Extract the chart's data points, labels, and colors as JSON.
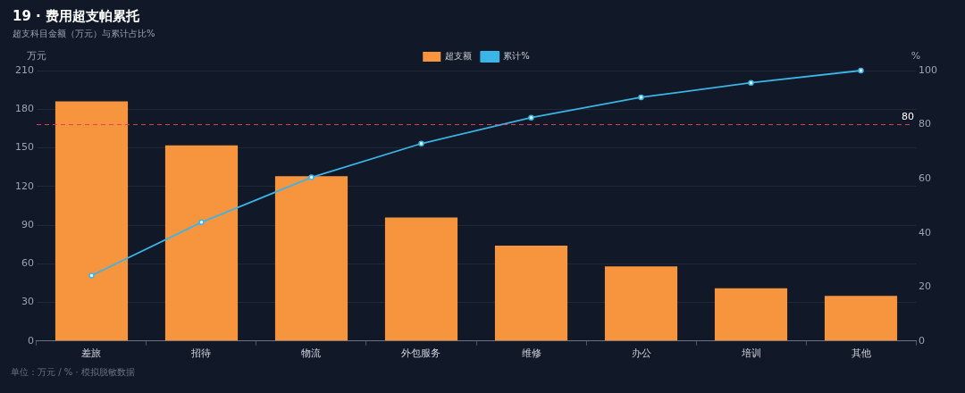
{
  "chart_data": {
    "type": "bar",
    "title": "19 · 费用超支帕累托",
    "subtitle": "超支科目金额（万元）与累计占比%",
    "ylabel": "万元",
    "y2label": "%",
    "categories": [
      "差旅",
      "招待",
      "物流",
      "外包服务",
      "维修",
      "办公",
      "培训",
      "其他"
    ],
    "series": [
      {
        "name": "超支额",
        "type": "bar",
        "color": "#f7943e",
        "values": [
          186,
          152,
          128,
          96,
          74,
          58,
          41,
          35
        ]
      },
      {
        "name": "累计%",
        "type": "line",
        "axis": "y2",
        "color": "#3bb4e6",
        "values": [
          24.2,
          43.9,
          60.5,
          73.0,
          82.6,
          90.1,
          95.5,
          100
        ]
      }
    ],
    "ylim": [
      0,
      210
    ],
    "yticks": [
      0,
      30,
      60,
      90,
      120,
      150,
      180,
      210
    ],
    "y2lim": [
      0,
      100
    ],
    "y2ticks": [
      0,
      20,
      40,
      60,
      80,
      100
    ],
    "ref_lines": [
      {
        "axis": "y2",
        "value": 80,
        "label": "80",
        "color": "#e0405a",
        "line_style": "dashed"
      }
    ],
    "grid": "y",
    "legend": "top",
    "marker": "circle",
    "annotations": [
      "单位：万元 / % · 模拟脱敏数据"
    ]
  }
}
